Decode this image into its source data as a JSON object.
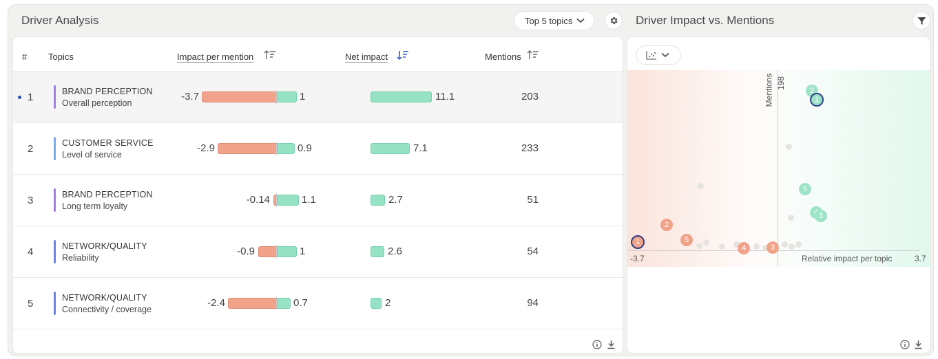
{
  "left_panel": {
    "title": "Driver Analysis",
    "topics_dropdown": "Top 5 topics",
    "columns": {
      "rank": "#",
      "topics": "Topics",
      "impact_per_mention": "Impact per mention",
      "net_impact": "Net impact",
      "mentions": "Mentions"
    },
    "rows": [
      {
        "rank": "1",
        "category": "BRAND PERCEPTION",
        "topic": "Overall perception",
        "neg": "-3.7",
        "pos": "1",
        "net": "11.1",
        "mentions": "203",
        "color": "#a27ee0"
      },
      {
        "rank": "2",
        "category": "CUSTOMER SERVICE",
        "topic": "Level of service",
        "neg": "-2.9",
        "pos": "0.9",
        "net": "7.1",
        "mentions": "233",
        "color": "#7aa9ea"
      },
      {
        "rank": "3",
        "category": "BRAND PERCEPTION",
        "topic": "Long term loyalty",
        "neg": "-0.14",
        "pos": "1.1",
        "net": "2.7",
        "mentions": "51",
        "color": "#a27ee0"
      },
      {
        "rank": "4",
        "category": "NETWORK/QUALITY",
        "topic": "Reliability",
        "neg": "-0.9",
        "pos": "1",
        "net": "2.6",
        "mentions": "54",
        "color": "#6c83e0"
      },
      {
        "rank": "5",
        "category": "NETWORK/QUALITY",
        "topic": "Connectivity / coverage",
        "neg": "-2.4",
        "pos": "0.7",
        "net": "2",
        "mentions": "94",
        "color": "#6c83e0"
      }
    ]
  },
  "right_panel": {
    "title": "Driver Impact vs. Mentions",
    "y_axis_label": "Mentions",
    "y_max_label": "198",
    "x_min_label": "-3.7",
    "x_max_label": "3.7",
    "x_axis_label": "Relative impact per topic"
  },
  "colors": {
    "negative": "#f0a38a",
    "positive": "#95e2c4",
    "selected_dot": "#2e4fb3"
  }
}
